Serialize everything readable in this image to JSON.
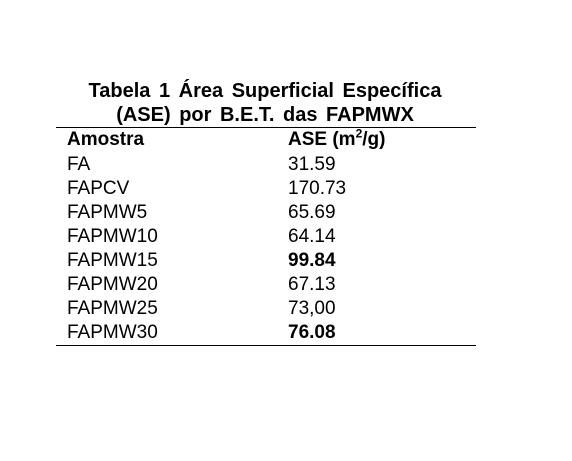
{
  "caption": {
    "line1": "Tabela 1 Área Superficial Específica",
    "line2": "(ASE) por B.E.T. das FAPMWX"
  },
  "table": {
    "headers": {
      "sample": "Amostra",
      "ase_prefix": "ASE (m",
      "ase_sup": "2",
      "ase_suffix": "/g)"
    },
    "rows": [
      {
        "sample": "FA",
        "ase": "31.59",
        "bold": false
      },
      {
        "sample": "FAPCV",
        "ase": "170.73",
        "bold": false
      },
      {
        "sample": "FAPMW5",
        "ase": "65.69",
        "bold": false
      },
      {
        "sample": "FAPMW10",
        "ase": "64.14",
        "bold": false
      },
      {
        "sample": "FAPMW15",
        "ase": "99.84",
        "bold": true
      },
      {
        "sample": "FAPMW20",
        "ase": "67.13",
        "bold": false
      },
      {
        "sample": "FAPMW25",
        "ase": "73,00",
        "bold": false
      },
      {
        "sample": "FAPMW30",
        "ase": "76.08",
        "bold": true
      }
    ]
  }
}
